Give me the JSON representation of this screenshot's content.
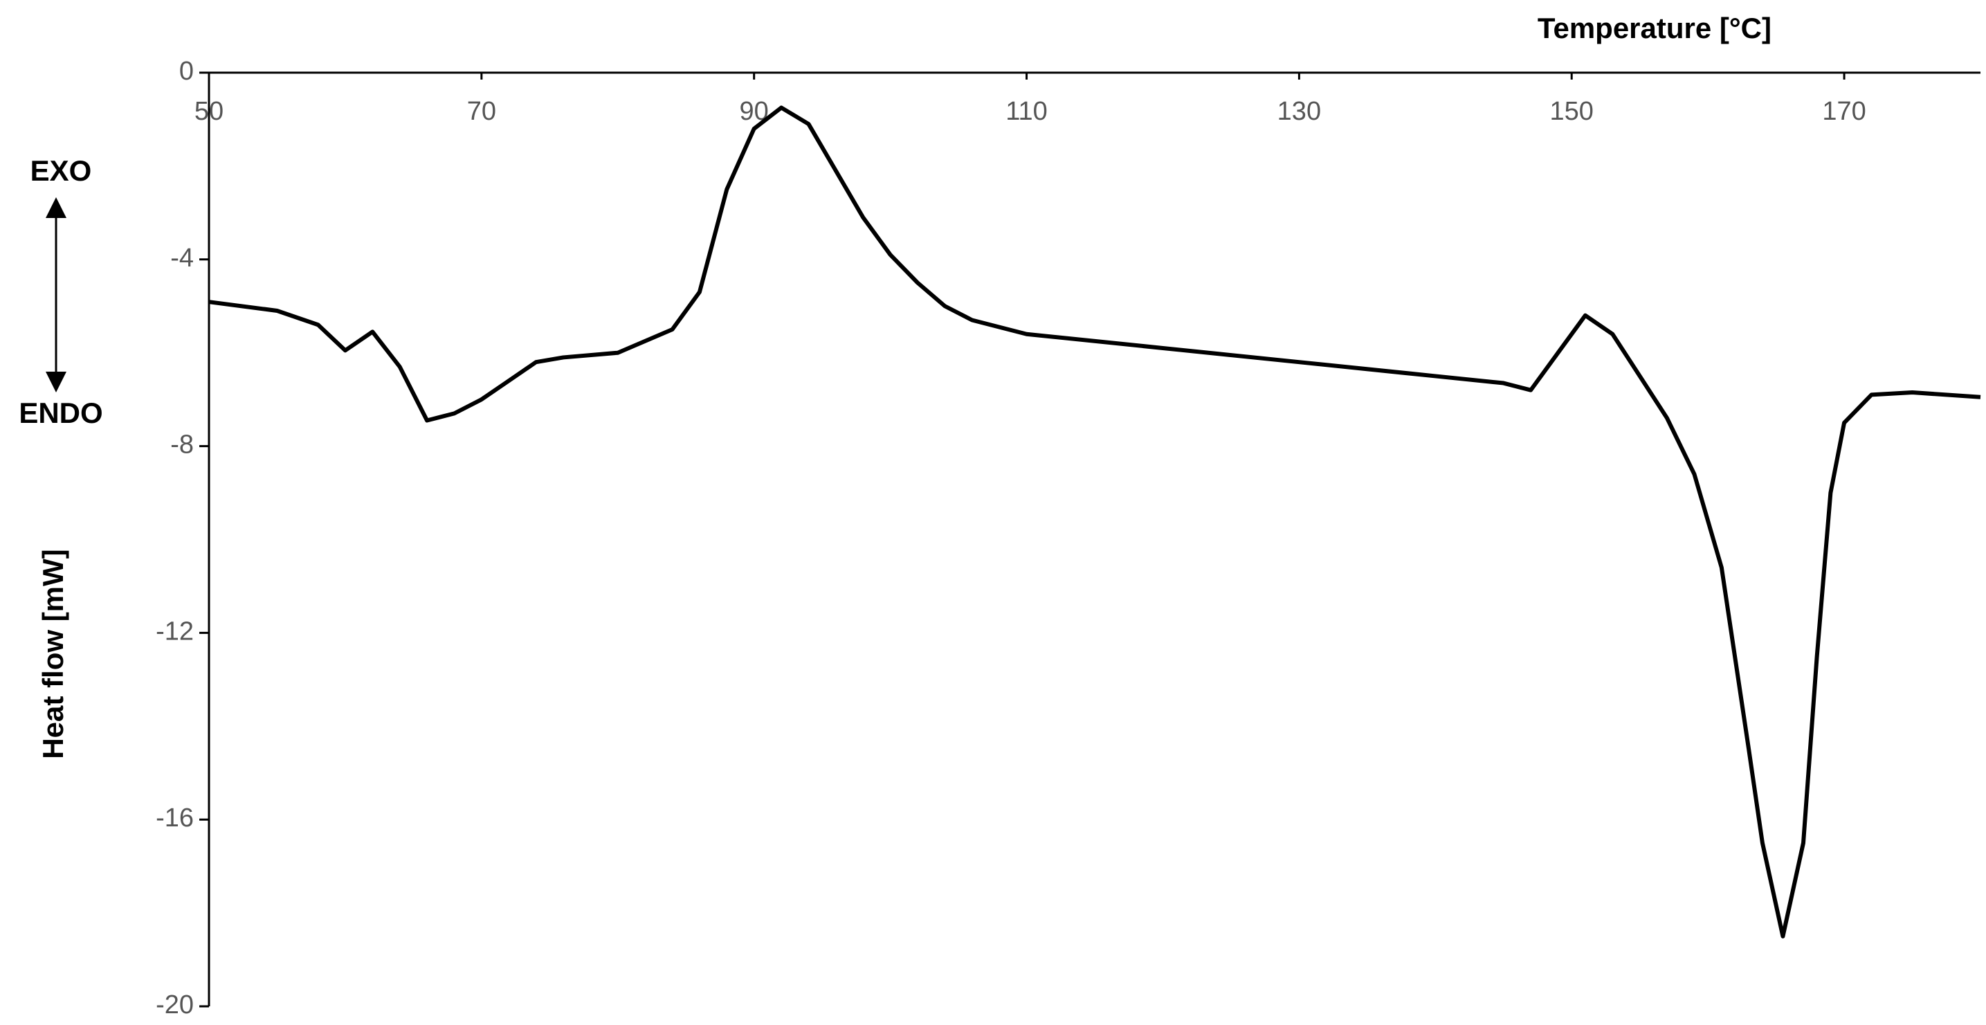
{
  "chart_data": {
    "type": "line",
    "title": "Temperature [°C]",
    "y_label": "Heat flow [mW]",
    "annotations": [
      "EXO",
      "ENDO"
    ],
    "x": [
      50,
      55,
      58,
      60,
      62,
      64,
      66,
      68,
      70,
      72,
      74,
      76,
      80,
      84,
      86,
      88,
      90,
      92,
      94,
      96,
      98,
      100,
      102,
      104,
      106,
      110,
      120,
      130,
      140,
      145,
      147,
      149,
      151,
      153,
      155,
      157,
      159,
      161,
      163,
      164,
      165.5,
      167,
      168,
      169,
      170,
      172,
      175,
      180
    ],
    "series": [
      {
        "name": "Heat flow",
        "color": "#000000",
        "values": [
          -4.91,
          -5.1,
          -5.4,
          -5.95,
          -5.55,
          -6.3,
          -7.45,
          -7.3,
          -7.0,
          -6.6,
          -6.2,
          -6.1,
          -6.0,
          -5.5,
          -4.7,
          -2.5,
          -1.2,
          -0.75,
          -1.1,
          -2.1,
          -3.1,
          -3.9,
          -4.5,
          -5.0,
          -5.3,
          -5.6,
          -5.9,
          -6.2,
          -6.5,
          -6.65,
          -6.8,
          -6.0,
          -5.2,
          -5.6,
          -6.5,
          -7.4,
          -8.6,
          -10.6,
          -14.5,
          -16.5,
          -18.5,
          -16.5,
          -12.5,
          -9.0,
          -7.5,
          -6.9,
          -6.85,
          -6.95
        ]
      }
    ],
    "xlim": [
      50,
      180
    ],
    "xticks": [
      50,
      70,
      90,
      110,
      130,
      150,
      170
    ],
    "ylim": [
      -20,
      0
    ],
    "yticks": [
      0,
      -4,
      -8,
      -12,
      -16,
      -20
    ],
    "grid": false
  }
}
